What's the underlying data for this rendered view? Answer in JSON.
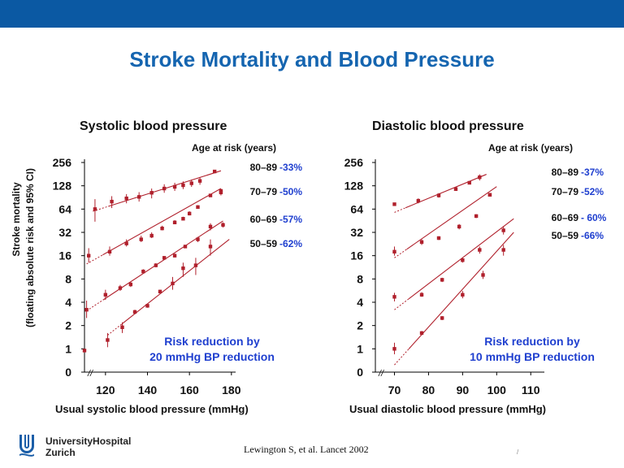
{
  "slide": {
    "title": "Stroke Mortality and Blood Pressure",
    "colors": {
      "header_bar": "#0b59a3",
      "title": "#1565b0",
      "series": "#b0202c",
      "reduction_text": "#1f3fcf"
    },
    "footer": {
      "logo_icon": "university-hospital-logo-icon",
      "logo_line1": "UniversityHospital",
      "logo_line2": "Zurich",
      "citation": "Lewington S, et al. Lancet 2002",
      "slide_mark": "/"
    }
  },
  "chart_data": [
    {
      "type": "scatter",
      "title": "Systolic blood pressure",
      "legend_title": "Age at risk (years)",
      "xlabel": "Usual systolic blood pressure (mmHg)",
      "ylabel": "Stroke mortality",
      "ylabel2": "(floating absolute risk and 95% CI)",
      "y_scale": "log2",
      "ylim": [
        0.5,
        256
      ],
      "xlim": [
        110,
        182
      ],
      "y_ticks": [
        0.5,
        1,
        2,
        4,
        8,
        16,
        32,
        64,
        128,
        256
      ],
      "y_tick_labels": [
        "0",
        "1",
        "2",
        "4",
        "8",
        "16",
        "32",
        "64",
        "128",
        "256"
      ],
      "x_ticks": [
        120,
        140,
        160,
        180
      ],
      "x_tick_labels": [
        "120",
        "140",
        "160",
        "180"
      ],
      "axis_break_mark": "//",
      "annotation_line1": "Risk reduction by",
      "annotation_line2": "20 mmHg BP reduction",
      "series": [
        {
          "name": "80–89",
          "reduction": "-33%",
          "points": [
            [
              115,
              64
            ],
            [
              123,
              80
            ],
            [
              130,
              88
            ],
            [
              136,
              92
            ],
            [
              142,
              104
            ],
            [
              148,
              118
            ],
            [
              153,
              124
            ],
            [
              157,
              130
            ],
            [
              161,
              138
            ],
            [
              165,
              148
            ],
            [
              172,
              196
            ],
            [
              175,
              105
            ]
          ],
          "ci_low": [
            44,
            66,
            76,
            80,
            88,
            104,
            110,
            116,
            124,
            132,
            186,
            96
          ],
          "ci_high": [
            86,
            94,
            100,
            106,
            118,
            134,
            140,
            146,
            154,
            166,
            206,
            116
          ],
          "fit": [
            [
              114,
              60
            ],
            [
              175,
              200
            ]
          ]
        },
        {
          "name": "70–79",
          "reduction": "-50%",
          "points": [
            [
              112,
              16
            ],
            [
              122,
              18
            ],
            [
              130,
              23
            ],
            [
              137,
              26
            ],
            [
              142,
              29
            ],
            [
              147,
              36
            ],
            [
              153,
              43
            ],
            [
              157,
              48
            ],
            [
              160,
              56
            ],
            [
              164,
              68
            ],
            [
              170,
              96
            ],
            [
              175,
              110
            ]
          ],
          "ci_low": [
            13,
            16,
            21,
            24,
            27,
            34,
            41,
            46,
            53,
            65,
            92,
            105
          ],
          "ci_high": [
            20,
            21,
            26,
            29,
            32,
            39,
            46,
            51,
            60,
            72,
            101,
            116
          ],
          "fit": [
            [
              111,
              12.5
            ],
            [
              175,
              118
            ]
          ]
        },
        {
          "name": "60–69",
          "reduction": "-57%",
          "points": [
            [
              111,
              3.2
            ],
            [
              120,
              5
            ],
            [
              127,
              6.1
            ],
            [
              132,
              6.8
            ],
            [
              138,
              10
            ],
            [
              144,
              12
            ],
            [
              148,
              15
            ],
            [
              153,
              16
            ],
            [
              158,
              21
            ],
            [
              164,
              26
            ],
            [
              170,
              38
            ],
            [
              176,
              40
            ]
          ],
          "ci_low": [
            2.5,
            4.3,
            5.6,
            6.3,
            9.4,
            11.3,
            14.3,
            15.2,
            20,
            24,
            34,
            37
          ],
          "ci_high": [
            4.2,
            5.8,
            6.7,
            7.3,
            10.7,
            12.8,
            15.8,
            17,
            22,
            28,
            42,
            43
          ],
          "fit": [
            [
              111,
              3.1
            ],
            [
              176,
              45
            ]
          ]
        },
        {
          "name": "50–59",
          "reduction": "-62%",
          "points": [
            [
              110,
              0.95
            ],
            [
              121,
              1.3
            ],
            [
              128,
              1.9
            ],
            [
              134,
              3
            ],
            [
              140,
              3.6
            ],
            [
              146,
              5.5
            ],
            [
              152,
              7
            ],
            [
              157,
              11
            ],
            [
              163,
              12
            ],
            [
              170,
              21
            ]
          ],
          "ci_low": [
            0.9,
            1.05,
            1.6,
            2.8,
            3.4,
            5.2,
            5.8,
            8.5,
            9,
            16
          ],
          "ci_high": [
            1.0,
            1.6,
            2.2,
            3.2,
            3.8,
            5.8,
            8.5,
            13,
            15,
            26
          ],
          "fit": [
            [
              121,
              1.5
            ],
            [
              179,
              26
            ]
          ]
        }
      ]
    },
    {
      "type": "scatter",
      "title": "Diastolic blood pressure",
      "legend_title": "Age at risk (years)",
      "xlabel": "Usual diastolic blood pressure (mmHg)",
      "y_scale": "log2",
      "ylim": [
        0.5,
        256
      ],
      "xlim": [
        64.4,
        114
      ],
      "y_ticks": [
        0.5,
        1,
        2,
        4,
        8,
        16,
        32,
        64,
        128,
        256
      ],
      "y_tick_labels": [
        "0",
        "1",
        "2",
        "4",
        "8",
        "16",
        "32",
        "64",
        "128",
        "256"
      ],
      "x_ticks": [
        70,
        80,
        90,
        100,
        110
      ],
      "x_tick_labels": [
        "70",
        "80",
        "90",
        "100",
        "110"
      ],
      "axis_break_mark": "//",
      "annotation_line1": "Risk reduction by",
      "annotation_line2": "10 mmHg BP reduction",
      "series": [
        {
          "name": "80–89",
          "reduction": "-37%",
          "points": [
            [
              70,
              74
            ],
            [
              77,
              82
            ],
            [
              83,
              96
            ],
            [
              88,
              116
            ],
            [
              92,
              140
            ],
            [
              95,
              165
            ],
            [
              98,
              98
            ]
          ],
          "ci_low": [
            71,
            76,
            90,
            110,
            134,
            150,
            95
          ],
          "ci_high": [
            77,
            88,
            103,
            122,
            146,
            180,
            101
          ],
          "fit": [
            [
              70,
              58
            ],
            [
              97,
              180
            ]
          ]
        },
        {
          "name": "70–79",
          "reduction": "-52%",
          "points": [
            [
              70,
              18
            ],
            [
              78,
              24
            ],
            [
              83,
              27
            ],
            [
              89,
              38
            ],
            [
              94,
              52
            ],
            [
              98,
              98
            ]
          ],
          "ci_low": [
            16,
            22,
            25.5,
            35,
            49,
            95
          ],
          "ci_high": [
            21,
            26,
            28.5,
            41,
            55,
            101
          ],
          "fit": [
            [
              70,
              15
            ],
            [
              100,
              125
            ]
          ]
        },
        {
          "name": "60–69",
          "reduction": "- 60%",
          "points": [
            [
              70,
              4.7
            ],
            [
              78,
              5
            ],
            [
              84,
              7.8
            ],
            [
              90,
              14
            ],
            [
              95,
              19
            ],
            [
              102,
              34
            ]
          ],
          "ci_low": [
            4.1,
            4.7,
            7.3,
            13,
            17,
            30
          ],
          "ci_high": [
            5.3,
            5.4,
            8.3,
            15,
            21,
            38
          ],
          "fit": [
            [
              70,
              3.2
            ],
            [
              105,
              48
            ]
          ]
        },
        {
          "name": "50–59",
          "reduction": "-66%",
          "points": [
            [
              70,
              1
            ],
            [
              78,
              1.6
            ],
            [
              84,
              2.5
            ],
            [
              90,
              5
            ],
            [
              96,
              9
            ],
            [
              102,
              19
            ]
          ],
          "ci_low": [
            0.85,
            1.5,
            2.35,
            4.5,
            8,
            16
          ],
          "ci_high": [
            1.2,
            1.7,
            2.65,
            5.6,
            10.2,
            22
          ],
          "fit": [
            [
              70,
              0.62
            ],
            [
              105,
              32
            ]
          ]
        }
      ]
    }
  ]
}
